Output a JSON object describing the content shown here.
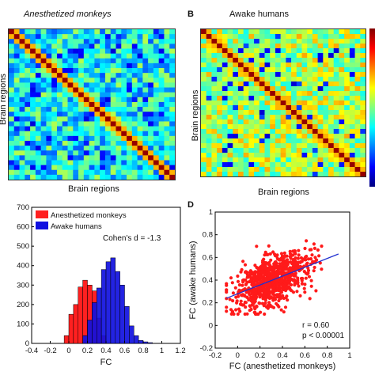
{
  "figure": {
    "panel_a": {
      "title": "Anesthetized monkeys",
      "ylabel": "Brain regions",
      "xlabel": "Brain regions"
    },
    "panel_b": {
      "letter": "B",
      "title": "Awake humans",
      "ylabel": "Brain regions",
      "xlabel": "Brain regions"
    },
    "panel_c": {
      "legend": [
        "Anesthetized monkeys",
        "Awake humans"
      ],
      "annotation": "Cohen's d = -1.3",
      "xlabel": "FC"
    },
    "panel_d": {
      "letter": "D",
      "xlabel": "FC (anesthetized monkeys)",
      "ylabel": "FC (awake humans)",
      "stat_r": "r = 0.60",
      "stat_p": "p < 0.00001"
    }
  },
  "colors": {
    "monkeys": "#ff2020",
    "humans": "#1010e0",
    "fit_line": "#2030d0",
    "scatter": "#ff1a1a"
  },
  "chart_data": [
    {
      "type": "heatmap",
      "title": "Anesthetized monkeys",
      "xlabel": "Brain regions",
      "ylabel": "Brain regions",
      "size": 31,
      "colormap": "jet",
      "diagonal": "high (dark red)"
    },
    {
      "type": "heatmap",
      "title": "Awake humans",
      "xlabel": "Brain regions",
      "ylabel": "Brain regions",
      "size": 31,
      "colormap": "jet",
      "diagonal": "high (dark red)"
    },
    {
      "type": "bar",
      "subtype": "histogram",
      "xlabel": "FC",
      "xlim": [
        -0.4,
        1.2
      ],
      "ylim": [
        0,
        700
      ],
      "xticks": [
        "-0.4",
        "-0.2",
        "0",
        "0.2",
        "0.4",
        "0.6",
        "0.8",
        "1",
        "1.2"
      ],
      "yticks": [
        "0",
        "100",
        "200",
        "300",
        "400",
        "500",
        "600",
        "700"
      ],
      "bin_width": 0.05,
      "series": [
        {
          "name": "Anesthetized monkeys",
          "bins": [
            -0.05,
            0.0,
            0.05,
            0.1,
            0.15,
            0.2,
            0.25,
            0.3,
            0.35
          ],
          "values": [
            40,
            150,
            200,
            290,
            325,
            300,
            270,
            130,
            40
          ]
        },
        {
          "name": "Awake humans",
          "bins": [
            0.15,
            0.2,
            0.25,
            0.3,
            0.35,
            0.4,
            0.45,
            0.5,
            0.55,
            0.6,
            0.65,
            0.7,
            0.75,
            0.8,
            0.85
          ],
          "values": [
            40,
            120,
            210,
            285,
            380,
            420,
            440,
            370,
            300,
            190,
            90,
            40,
            15,
            8,
            4
          ]
        }
      ],
      "annotation": "Cohen's d = -1.3"
    },
    {
      "type": "scatter",
      "xlabel": "FC (anesthetized monkeys)",
      "ylabel": "FC (awake humans)",
      "xlim": [
        -0.2,
        1.0
      ],
      "ylim": [
        -0.2,
        1.0
      ],
      "xticks": [
        "-0.2",
        "0",
        "0.2",
        "0.4",
        "0.6",
        "0.8",
        "1"
      ],
      "yticks": [
        "-0.2",
        "0",
        "0.2",
        "0.4",
        "0.6",
        "0.8",
        "1"
      ],
      "fit_line": {
        "x": [
          -0.1,
          0.9
        ],
        "y": [
          0.24,
          0.63
        ]
      },
      "point_cloud": {
        "x_range": [
          -0.1,
          0.9
        ],
        "y_range": [
          0.1,
          0.9
        ]
      },
      "stats": {
        "r": 0.6,
        "p": "< 0.00001"
      }
    }
  ]
}
